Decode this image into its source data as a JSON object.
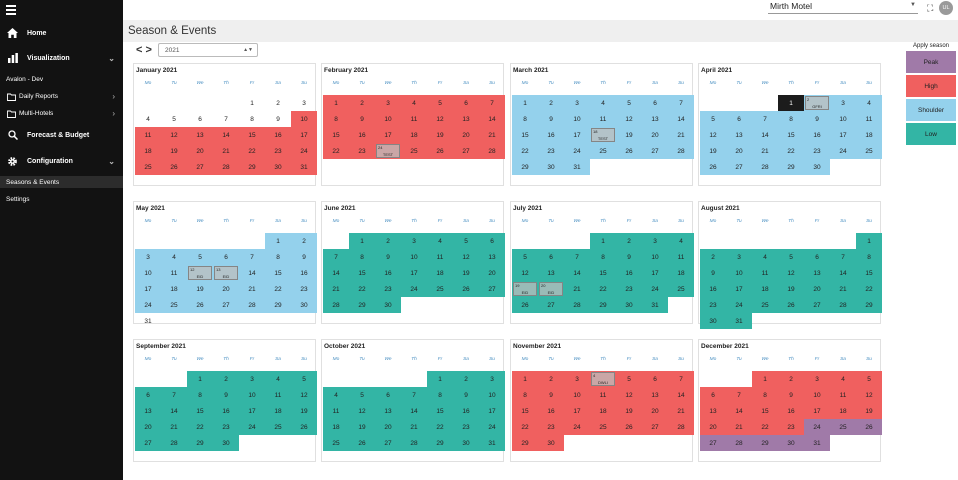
{
  "sidebar": {
    "menu_icon": "hamburger-icon",
    "home": "Home",
    "visualization": "Visualization",
    "property": "Avalon - Dev",
    "daily_reports": "Daily Reports",
    "multi_hotels": "Multi-Hotels",
    "forecast": "Forecast & Budget",
    "configuration": "Configuration",
    "seasons_events": "Seasons & Events",
    "settings": "Settings"
  },
  "topbar": {
    "hotel": "Mirth Motel",
    "avatar": "UL"
  },
  "page": {
    "title": "Season & Events",
    "year": "2021",
    "prev": "<",
    "next": ">"
  },
  "legend": {
    "title": "Apply season",
    "items": [
      {
        "label": "Peak",
        "color": "#a07aa8"
      },
      {
        "label": "High",
        "color": "#f0605f"
      },
      {
        "label": "Shoulder",
        "color": "#94d1ec"
      },
      {
        "label": "Low",
        "color": "#33b5a5"
      }
    ]
  },
  "weekdays": [
    "Mo",
    "Tu",
    "We",
    "Th",
    "Fr",
    "Sa",
    "Su"
  ],
  "months": [
    {
      "name": "January 2021",
      "offset": 4,
      "days": 31,
      "ranges": [
        [
          1,
          9,
          "none"
        ],
        [
          10,
          31,
          "high"
        ]
      ],
      "events": []
    },
    {
      "name": "February 2021",
      "offset": 0,
      "days": 28,
      "ranges": [
        [
          1,
          28,
          "high"
        ]
      ],
      "events": [
        {
          "day": 24,
          "label": "TEST"
        }
      ]
    },
    {
      "name": "March 2021",
      "offset": 0,
      "days": 31,
      "ranges": [
        [
          1,
          31,
          "shoulder"
        ]
      ],
      "events": [
        {
          "day": 18,
          "label": "TEST"
        }
      ]
    },
    {
      "name": "April 2021",
      "offset": 3,
      "days": 30,
      "ranges": [
        [
          1,
          1,
          "black"
        ],
        [
          2,
          30,
          "shoulder"
        ]
      ],
      "events": [
        {
          "day": 2,
          "label": "GFRI"
        }
      ]
    },
    {
      "name": "May 2021",
      "offset": 5,
      "days": 31,
      "ranges": [
        [
          1,
          30,
          "shoulder"
        ],
        [
          31,
          31,
          "none"
        ]
      ],
      "events": [
        {
          "day": 12,
          "label": "EID"
        },
        {
          "day": 13,
          "label": "EID"
        }
      ]
    },
    {
      "name": "June 2021",
      "offset": 1,
      "days": 30,
      "ranges": [
        [
          1,
          30,
          "low"
        ]
      ],
      "events": []
    },
    {
      "name": "July 2021",
      "offset": 3,
      "days": 31,
      "ranges": [
        [
          1,
          31,
          "low"
        ]
      ],
      "events": [
        {
          "day": 19,
          "label": "EID"
        },
        {
          "day": 20,
          "label": "EID"
        }
      ]
    },
    {
      "name": "August 2021",
      "offset": 6,
      "days": 31,
      "ranges": [
        [
          1,
          31,
          "low"
        ]
      ],
      "events": []
    },
    {
      "name": "September 2021",
      "offset": 2,
      "days": 30,
      "ranges": [
        [
          1,
          30,
          "low"
        ]
      ],
      "events": []
    },
    {
      "name": "October 2021",
      "offset": 4,
      "days": 31,
      "ranges": [
        [
          1,
          31,
          "low"
        ]
      ],
      "events": []
    },
    {
      "name": "November 2021",
      "offset": 0,
      "days": 30,
      "ranges": [
        [
          1,
          30,
          "high"
        ]
      ],
      "events": [
        {
          "day": 4,
          "label": "DWLI"
        }
      ]
    },
    {
      "name": "December 2021",
      "offset": 2,
      "days": 31,
      "ranges": [
        [
          1,
          23,
          "high"
        ],
        [
          24,
          31,
          "peak"
        ]
      ],
      "events": []
    }
  ]
}
